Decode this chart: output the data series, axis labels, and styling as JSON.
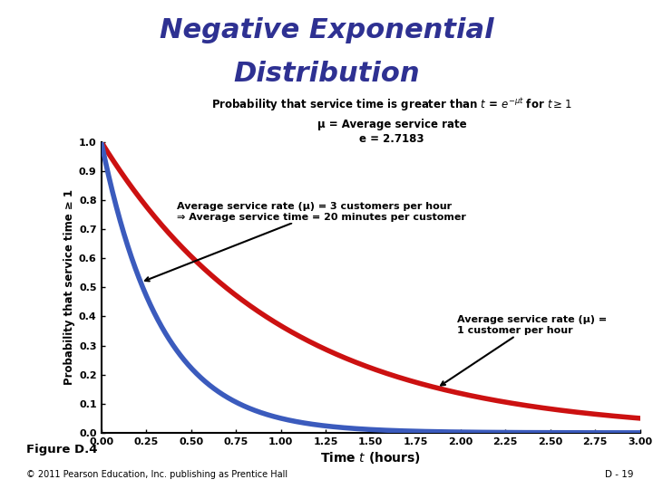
{
  "title_line1": "Negative Exponential",
  "title_line2": "Distribution",
  "title_color": "#2E3192",
  "title_fontsize": 22,
  "subtitle": "Probability that service time is greater than $t$ = $e^{-μt}$ for $t ≥ 1$",
  "mu_note_line1": "μ = Average service rate",
  "mu_note_line2": "e = 2.7183",
  "xlabel": "Time $t$ (hours)",
  "ylabel": "Probability that service time ≥ 1",
  "xlim": [
    0.0,
    3.0
  ],
  "ylim": [
    0.0,
    1.0
  ],
  "xticks": [
    0.0,
    0.25,
    0.5,
    0.75,
    1.0,
    1.25,
    1.5,
    1.75,
    2.0,
    2.25,
    2.5,
    2.75,
    3.0
  ],
  "yticks": [
    0.0,
    0.1,
    0.2,
    0.3,
    0.4,
    0.5,
    0.6,
    0.7,
    0.8,
    0.9,
    1.0
  ],
  "mu_blue": 3,
  "mu_red": 1,
  "blue_color": "#3B5BBD",
  "red_color": "#CC1111",
  "ann_blue_text1": "Average service rate (μ) = 3 customers per hour",
  "ann_blue_text2": "⇒ Average service time = 20 minutes per customer",
  "ann_red_text1": "Average service rate (μ) =",
  "ann_red_text2": "1 customer per hour",
  "figure_caption": "Figure D.4",
  "copyright": "© 2011 Pearson Education, Inc. publishing as Prentice Hall",
  "page_number": "D - 19",
  "background_color": "#FFFFFF"
}
